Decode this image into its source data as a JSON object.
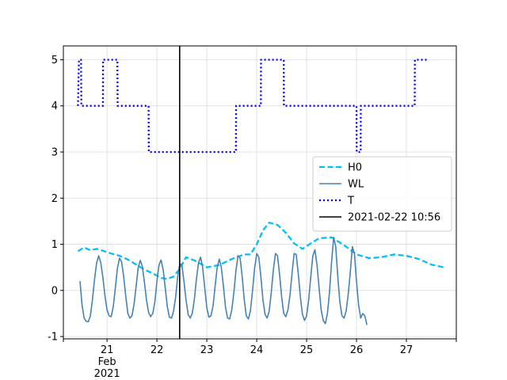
{
  "chart_data": {
    "type": "line",
    "title": "",
    "xlabel": "",
    "ylabel": "",
    "x_range": [
      "2021-02-20 03:00",
      "2021-02-28 00:00"
    ],
    "ylim": [
      -1.05,
      5.3
    ],
    "grid": true,
    "legend_position": "center-right",
    "x_ticks": [
      {
        "x": "2021-02-21",
        "label": "21"
      },
      {
        "x": "2021-02-22",
        "label": "22"
      },
      {
        "x": "2021-02-23",
        "label": "23"
      },
      {
        "x": "2021-02-24",
        "label": "24"
      },
      {
        "x": "2021-02-25",
        "label": "25"
      },
      {
        "x": "2021-02-26",
        "label": "26"
      },
      {
        "x": "2021-02-27",
        "label": "27"
      }
    ],
    "x_month_label": "Feb",
    "x_year_label": "2021",
    "y_ticks": [
      -1,
      0,
      1,
      2,
      3,
      4,
      5
    ],
    "series": [
      {
        "name": "H0",
        "color": "#00bfff",
        "style": "dashed",
        "points": [
          [
            "2021-02-20 10:00",
            0.85
          ],
          [
            "2021-02-20 13:00",
            0.93
          ],
          [
            "2021-02-20 16:00",
            0.87
          ],
          [
            "2021-02-20 19:00",
            0.9
          ],
          [
            "2021-02-20 22:00",
            0.86
          ],
          [
            "2021-02-21 02:00",
            0.8
          ],
          [
            "2021-02-21 06:00",
            0.75
          ],
          [
            "2021-02-21 10:00",
            0.67
          ],
          [
            "2021-02-21 14:00",
            0.56
          ],
          [
            "2021-02-21 18:00",
            0.45
          ],
          [
            "2021-02-21 22:00",
            0.37
          ],
          [
            "2021-02-22 02:00",
            0.27
          ],
          [
            "2021-02-22 05:00",
            0.25
          ],
          [
            "2021-02-22 08:00",
            0.3
          ],
          [
            "2021-02-22 11:00",
            0.47
          ],
          [
            "2021-02-22 14:00",
            0.72
          ],
          [
            "2021-02-22 18:00",
            0.65
          ],
          [
            "2021-02-23 00:00",
            0.5
          ],
          [
            "2021-02-23 06:00",
            0.55
          ],
          [
            "2021-02-23 12:00",
            0.68
          ],
          [
            "2021-02-23 18:00",
            0.78
          ],
          [
            "2021-02-23 21:00",
            0.78
          ],
          [
            "2021-02-24 00:00",
            1.0
          ],
          [
            "2021-02-24 03:00",
            1.3
          ],
          [
            "2021-02-24 06:00",
            1.47
          ],
          [
            "2021-02-24 10:00",
            1.42
          ],
          [
            "2021-02-24 14:00",
            1.25
          ],
          [
            "2021-02-24 18:00",
            1.02
          ],
          [
            "2021-02-24 22:00",
            0.9
          ],
          [
            "2021-02-25 02:00",
            1.02
          ],
          [
            "2021-02-25 06:00",
            1.13
          ],
          [
            "2021-02-25 12:00",
            1.15
          ],
          [
            "2021-02-25 18:00",
            0.98
          ],
          [
            "2021-02-26 00:00",
            0.78
          ],
          [
            "2021-02-26 06:00",
            0.7
          ],
          [
            "2021-02-26 12:00",
            0.72
          ],
          [
            "2021-02-26 18:00",
            0.78
          ],
          [
            "2021-02-27 00:00",
            0.75
          ],
          [
            "2021-02-27 06:00",
            0.68
          ],
          [
            "2021-02-27 12:00",
            0.56
          ],
          [
            "2021-02-27 18:00",
            0.5
          ]
        ]
      },
      {
        "name": "WL",
        "color": "#4682b4",
        "style": "solid",
        "first": "2021-02-20 11:00",
        "step_hours": 1,
        "values": [
          0.2,
          -0.32,
          -0.6,
          -0.67,
          -0.68,
          -0.55,
          -0.2,
          0.25,
          0.6,
          0.75,
          0.6,
          0.28,
          -0.12,
          -0.42,
          -0.55,
          -0.57,
          -0.35,
          0.05,
          0.48,
          0.7,
          0.62,
          0.3,
          -0.12,
          -0.5,
          -0.6,
          -0.55,
          -0.3,
          0.1,
          0.5,
          0.65,
          0.52,
          0.18,
          -0.22,
          -0.48,
          -0.57,
          -0.5,
          -0.25,
          0.2,
          0.55,
          0.66,
          0.45,
          0.05,
          -0.35,
          -0.58,
          -0.6,
          -0.45,
          -0.15,
          0.3,
          0.58,
          0.55,
          0.2,
          -0.2,
          -0.52,
          -0.6,
          -0.5,
          -0.2,
          0.25,
          0.6,
          0.72,
          0.5,
          0.05,
          -0.38,
          -0.58,
          -0.55,
          -0.33,
          0.1,
          0.5,
          0.68,
          0.5,
          0.08,
          -0.37,
          -0.6,
          -0.62,
          -0.42,
          -0.05,
          0.42,
          0.75,
          0.7,
          0.3,
          -0.2,
          -0.55,
          -0.62,
          -0.43,
          0.0,
          0.48,
          0.8,
          0.72,
          0.3,
          -0.2,
          -0.52,
          -0.6,
          -0.45,
          -0.05,
          0.45,
          0.8,
          0.75,
          0.35,
          -0.15,
          -0.5,
          -0.57,
          -0.43,
          -0.1,
          0.38,
          0.8,
          0.78,
          0.35,
          -0.15,
          -0.52,
          -0.65,
          -0.55,
          -0.2,
          0.3,
          0.75,
          0.88,
          0.55,
          0.05,
          -0.42,
          -0.65,
          -0.72,
          -0.5,
          -0.05,
          0.6,
          1.15,
          0.95,
          0.3,
          -0.25,
          -0.55,
          -0.6,
          -0.45,
          -0.1,
          0.4,
          0.95,
          0.8,
          0.2,
          -0.32,
          -0.6,
          -0.5,
          -0.55,
          -0.75
        ]
      },
      {
        "name": "T",
        "color": "#0000ff",
        "style": "dotted",
        "points": [
          [
            "2021-02-20 10:00",
            4
          ],
          [
            "2021-02-20 10:30",
            5
          ],
          [
            "2021-02-20 11:30",
            5
          ],
          [
            "2021-02-20 11:40",
            4
          ],
          [
            "2021-02-20 22:00",
            4
          ],
          [
            "2021-02-20 22:05",
            5
          ],
          [
            "2021-02-21 05:00",
            5
          ],
          [
            "2021-02-21 05:05",
            4
          ],
          [
            "2021-02-21 20:00",
            4
          ],
          [
            "2021-02-21 20:05",
            3
          ],
          [
            "2021-02-23 14:00",
            3
          ],
          [
            "2021-02-23 14:05",
            4
          ],
          [
            "2021-02-24 02:00",
            4
          ],
          [
            "2021-02-24 02:05",
            5
          ],
          [
            "2021-02-24 13:00",
            5
          ],
          [
            "2021-02-24 13:05",
            4
          ],
          [
            "2021-02-26 00:00",
            4
          ],
          [
            "2021-02-26 00:05",
            3
          ],
          [
            "2021-02-26 02:00",
            3
          ],
          [
            "2021-02-26 02:05",
            4
          ],
          [
            "2021-02-27 04:00",
            4
          ],
          [
            "2021-02-27 04:05",
            5
          ],
          [
            "2021-02-27 10:00",
            5
          ]
        ]
      }
    ],
    "vline": {
      "x": "2021-02-22 10:56",
      "label": "2021-02-22 10:56",
      "color": "#000000"
    }
  }
}
